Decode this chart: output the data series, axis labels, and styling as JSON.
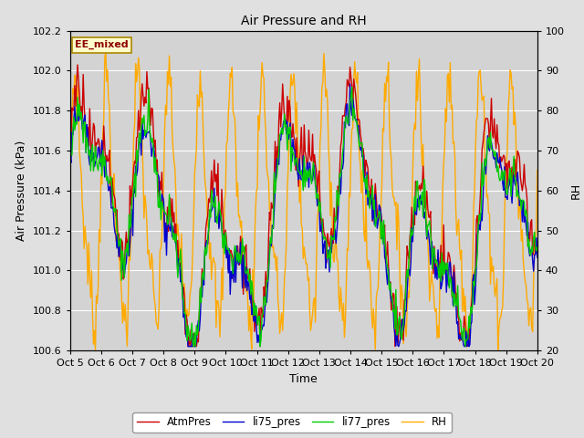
{
  "title": "Air Pressure and RH",
  "xlabel": "Time",
  "ylabel_left": "Air Pressure (kPa)",
  "ylabel_right": "RH",
  "annotation": "EE_mixed",
  "xlim": [
    0,
    15
  ],
  "ylim_left": [
    100.6,
    102.2
  ],
  "ylim_right": [
    20,
    100
  ],
  "xtick_labels": [
    "Oct 5",
    "Oct 6",
    "Oct 7",
    "Oct 8",
    "Oct 9",
    "Oct 10",
    "Oct 11",
    "Oct 12",
    "Oct 13",
    "Oct 14",
    "Oct 15",
    "Oct 16",
    "Oct 17",
    "Oct 18",
    "Oct 19",
    "Oct 20"
  ],
  "xtick_positions": [
    0,
    1,
    2,
    3,
    4,
    5,
    6,
    7,
    8,
    9,
    10,
    11,
    12,
    13,
    14,
    15
  ],
  "yticks_left": [
    100.6,
    100.8,
    101.0,
    101.2,
    101.4,
    101.6,
    101.8,
    102.0,
    102.2
  ],
  "yticks_right": [
    20,
    30,
    40,
    50,
    60,
    70,
    80,
    90,
    100
  ],
  "colors": {
    "AtmPres": "#cc0000",
    "li75_pres": "#0000cc",
    "li77_pres": "#00cc00",
    "RH": "#ffaa00"
  },
  "legend_labels": [
    "AtmPres",
    "li75_pres",
    "li77_pres",
    "RH"
  ],
  "background_color": "#e0e0e0",
  "plot_bg_color": "#d3d3d3",
  "grid_color": "#ffffff",
  "figsize": [
    6.4,
    4.8
  ],
  "dpi": 100
}
